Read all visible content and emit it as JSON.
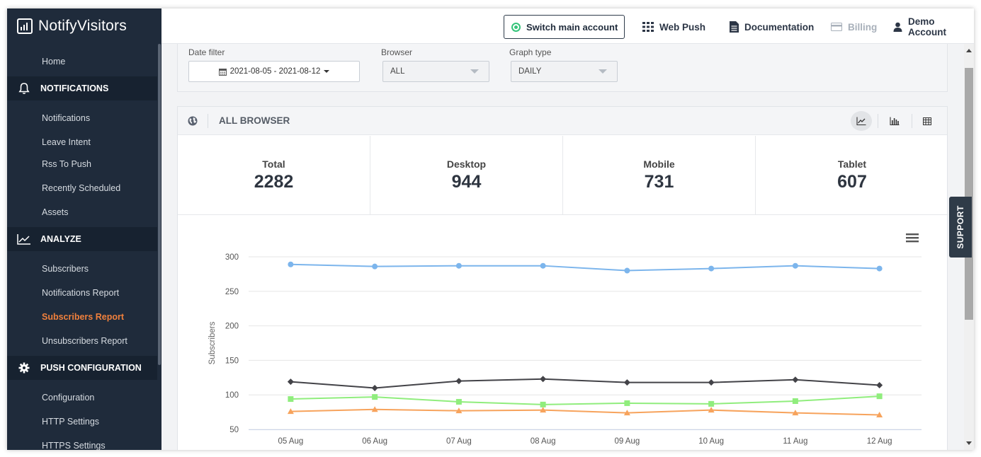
{
  "app": {
    "brand": "NotifyVisitors"
  },
  "topbar": {
    "switch_account": "Switch main account",
    "web_push": "Web Push",
    "documentation": "Documentation",
    "billing": "Billing",
    "account": "Demo Account"
  },
  "sidebar": {
    "home": "Home",
    "notifications_section": "NOTIFICATIONS",
    "notifications": "Notifications",
    "leave_intent": "Leave Intent",
    "rss_to_push": "Rss To Push",
    "recently_scheduled": "Recently Scheduled",
    "assets": "Assets",
    "analyze_section": "ANALYZE",
    "subscribers": "Subscribers",
    "notifications_report": "Notifications Report",
    "subscribers_report": "Subscribers Report",
    "unsubscribers_report": "Unsubscribers Report",
    "push_config_section": "PUSH CONFIGURATION",
    "configuration": "Configuration",
    "http_settings": "HTTP Settings",
    "https_settings": "HTTPS Settings"
  },
  "filters": {
    "date_label": "Date filter",
    "date_value": "2021-08-05 - 2021-08-12",
    "browser_label": "Browser",
    "browser_value": "ALL",
    "graph_label": "Graph type",
    "graph_value": "DAILY"
  },
  "card": {
    "title": "ALL BROWSER",
    "stats": [
      {
        "label": "Total",
        "value": "2282"
      },
      {
        "label": "Desktop",
        "value": "944"
      },
      {
        "label": "Mobile",
        "value": "731"
      },
      {
        "label": "Tablet",
        "value": "607"
      }
    ]
  },
  "support": "SUPPORT",
  "chart_data": {
    "type": "line",
    "ylabel": "Subscribers",
    "xlabel": "",
    "ylim": [
      50,
      300
    ],
    "yticks": [
      50,
      100,
      150,
      200,
      250,
      300
    ],
    "grid": true,
    "categories": [
      "05 Aug",
      "06 Aug",
      "07 Aug",
      "08 Aug",
      "09 Aug",
      "10 Aug",
      "11 Aug",
      "12 Aug"
    ],
    "series": [
      {
        "color": "#7cb5ec",
        "marker": "circle",
        "values": [
          289,
          286,
          287,
          287,
          280,
          283,
          287,
          283
        ]
      },
      {
        "color": "#434348",
        "marker": "diamond",
        "values": [
          119,
          110,
          120,
          123,
          118,
          118,
          122,
          114
        ]
      },
      {
        "color": "#90ed7d",
        "marker": "square",
        "values": [
          94,
          97,
          90,
          86,
          88,
          87,
          91,
          98
        ]
      },
      {
        "color": "#f7a35c",
        "marker": "triangle",
        "values": [
          76,
          79,
          77,
          78,
          74,
          78,
          74,
          71
        ]
      }
    ]
  }
}
